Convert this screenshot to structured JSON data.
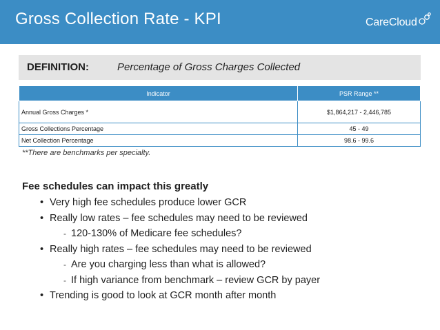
{
  "header": {
    "title": "Gross Collection Rate - KPI",
    "logo_text": "CareCloud",
    "bg_color": "#3c8dc5"
  },
  "definition": {
    "label": "DEFINITION:",
    "text": "Percentage of Gross Charges Collected"
  },
  "table": {
    "columns": [
      "Indicator",
      "PSR Range **"
    ],
    "rows": [
      {
        "indicator": "Annual Gross Charges *",
        "range": "$1,864,217 - 2,446,785"
      },
      {
        "indicator": "Gross Collections Percentage",
        "range": "45 - 49"
      },
      {
        "indicator": "Net Collection Percentage",
        "range": "98.6 - 99.6"
      }
    ]
  },
  "footnote": "**There are benchmarks per specialty.",
  "content": {
    "heading": "Fee schedules can impact this greatly",
    "items": [
      "Very high fee schedules produce lower GCR",
      "Really low rates – fee schedules may need to be reviewed",
      "120-130% of Medicare fee schedules?",
      "Really high rates – fee schedules may need to be reviewed",
      "Are you charging less than what is allowed?",
      "If high variance from benchmark – review GCR by payer",
      "Trending is good to look at GCR month after month"
    ]
  }
}
